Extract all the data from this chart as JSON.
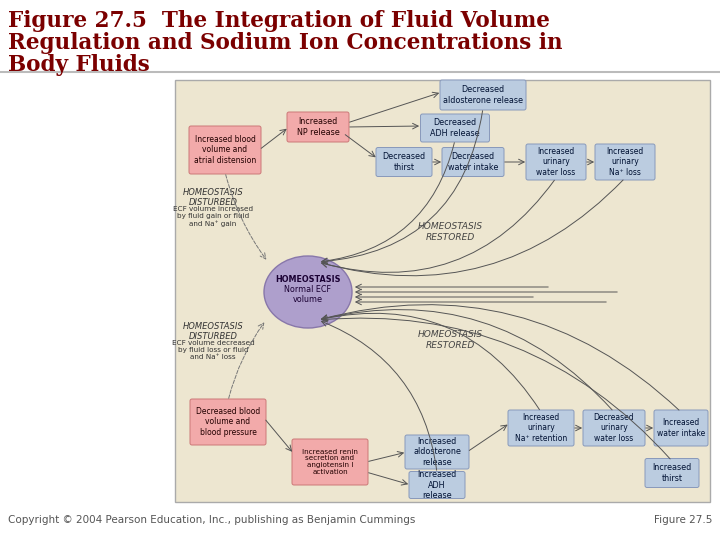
{
  "title_line1": "Figure 27.5  The Integration of Fluid Volume",
  "title_line2": "Regulation and Sodium Ion Concentrations in",
  "title_line3": "Body Fluids",
  "title_color": "#7B0000",
  "title_fontsize": 15.5,
  "bg_color": "#FFFFFF",
  "diagram_bg": "#EDE6D0",
  "footer_left": "Copyright © 2004 Pearson Education, Inc., publishing as Benjamin Cummings",
  "footer_right": "Figure 27.5",
  "footer_color": "#555555",
  "footer_fontsize": 7.5,
  "header_line_color": "#BBBBBB",
  "pink_box_color": "#F2AAAA",
  "pink_box_edge": "#CC7777",
  "blue_box_color": "#BBCCE0",
  "blue_box_edge": "#8899BB",
  "ellipse_color": "#AE9FCC",
  "ellipse_edge": "#8877AA"
}
